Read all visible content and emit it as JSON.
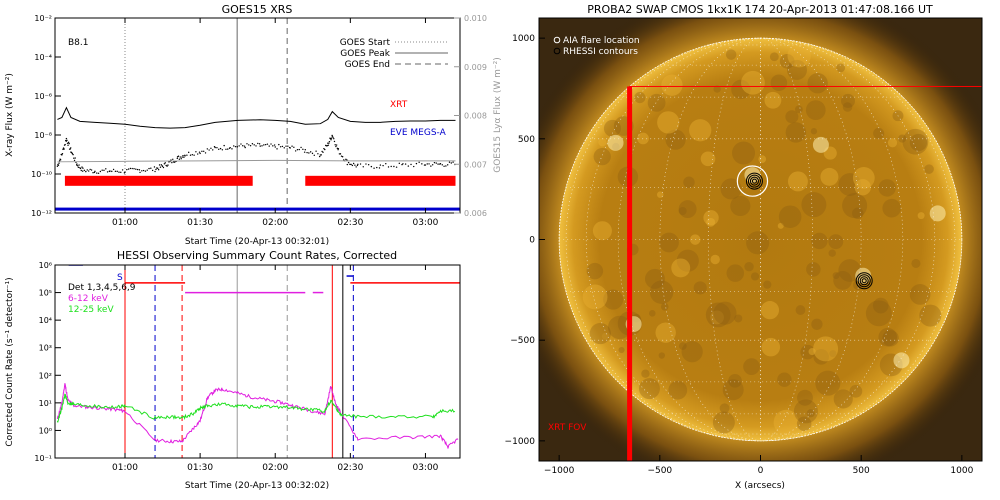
{
  "chart_data": [
    {
      "type": "line",
      "title": "GOES15 XRS",
      "xlabel": "Start Time (20-Apr-13 00:32:01)",
      "ylabel": "X-ray Flux (W m⁻²)",
      "ylabel_right": "GOES15 Lyα Flux (W m⁻²)",
      "x_tick_labels": [
        "01:00",
        "01:30",
        "02:00",
        "02:30",
        "03:00"
      ],
      "x_ticks_hours": [
        1.0,
        1.5,
        2.0,
        2.5,
        3.0
      ],
      "xlim_hours": [
        0.534,
        3.23
      ],
      "ylim_log": [
        -12,
        -2
      ],
      "y_tick_labels": [
        "10⁻¹²",
        "10⁻¹⁰",
        "10⁻⁸",
        "10⁻⁶",
        "10⁻⁴",
        "10⁻²"
      ],
      "ylim_right": [
        0.006,
        0.01
      ],
      "y_right_tick_labels": [
        "0.006",
        "0.007",
        "0.008",
        "0.009",
        "0.010"
      ],
      "class_label": "B8.1",
      "legend": [
        {
          "label": "GOES Start",
          "style": "dotted",
          "color": "#888888"
        },
        {
          "label": "GOES Peak",
          "style": "solid",
          "color": "#999999"
        },
        {
          "label": "GOES End",
          "style": "dashed",
          "color": "#999999"
        }
      ],
      "markers_hours": {
        "start": 1.0,
        "peak": 1.747,
        "end": 2.08
      },
      "series": [
        {
          "name": "XRT",
          "color": "#ff0000",
          "kind": "label"
        },
        {
          "name": "EVE MEGS-A",
          "color": "#0000cc",
          "kind": "label"
        },
        {
          "name": "long",
          "color": "#000000",
          "kind": "solid",
          "points": [
            [
              0.55,
              -7.2
            ],
            [
              0.58,
              -7.1
            ],
            [
              0.61,
              -6.6
            ],
            [
              0.64,
              -7.1
            ],
            [
              0.7,
              -7.3
            ],
            [
              0.8,
              -7.35
            ],
            [
              0.9,
              -7.4
            ],
            [
              1.0,
              -7.45
            ],
            [
              1.1,
              -7.55
            ],
            [
              1.2,
              -7.62
            ],
            [
              1.3,
              -7.65
            ],
            [
              1.4,
              -7.62
            ],
            [
              1.5,
              -7.5
            ],
            [
              1.6,
              -7.35
            ],
            [
              1.75,
              -7.25
            ],
            [
              1.9,
              -7.22
            ],
            [
              2.0,
              -7.25
            ],
            [
              2.1,
              -7.3
            ],
            [
              2.2,
              -7.45
            ],
            [
              2.3,
              -7.42
            ],
            [
              2.35,
              -7.2
            ],
            [
              2.38,
              -6.8
            ],
            [
              2.42,
              -7.1
            ],
            [
              2.5,
              -7.3
            ],
            [
              2.6,
              -7.35
            ],
            [
              2.7,
              -7.35
            ],
            [
              2.8,
              -7.3
            ],
            [
              2.9,
              -7.28
            ],
            [
              3.0,
              -7.28
            ],
            [
              3.1,
              -7.25
            ],
            [
              3.2,
              -7.25
            ]
          ]
        },
        {
          "name": "short",
          "color": "#000000",
          "kind": "dotted",
          "points": [
            [
              0.55,
              -9.6
            ],
            [
              0.58,
              -9.0
            ],
            [
              0.61,
              -8.2
            ],
            [
              0.64,
              -8.8
            ],
            [
              0.68,
              -9.5
            ],
            [
              0.72,
              -9.8
            ],
            [
              0.8,
              -9.85
            ],
            [
              0.9,
              -9.85
            ],
            [
              1.0,
              -9.85
            ],
            [
              1.1,
              -9.8
            ],
            [
              1.2,
              -9.75
            ],
            [
              1.25,
              -9.6
            ],
            [
              1.3,
              -9.4
            ],
            [
              1.35,
              -9.2
            ],
            [
              1.4,
              -9.0
            ],
            [
              1.5,
              -8.85
            ],
            [
              1.6,
              -8.7
            ],
            [
              1.7,
              -8.6
            ],
            [
              1.8,
              -8.55
            ],
            [
              1.9,
              -8.55
            ],
            [
              2.0,
              -8.6
            ],
            [
              2.1,
              -8.65
            ],
            [
              2.2,
              -8.8
            ],
            [
              2.3,
              -9.0
            ],
            [
              2.35,
              -8.5
            ],
            [
              2.38,
              -8.0
            ],
            [
              2.42,
              -8.8
            ],
            [
              2.48,
              -9.4
            ],
            [
              2.55,
              -9.6
            ],
            [
              2.7,
              -9.6
            ],
            [
              2.85,
              -9.55
            ],
            [
              3.0,
              -9.5
            ],
            [
              3.1,
              -9.5
            ],
            [
              3.2,
              -9.5
            ]
          ]
        },
        {
          "name": "lyman",
          "color": "#999999",
          "kind": "solid-right",
          "points": [
            [
              0.55,
              0.00705
            ],
            [
              1.0,
              0.00706
            ],
            [
              1.5,
              0.00707
            ],
            [
              2.0,
              0.00708
            ],
            [
              2.5,
              0.00707
            ],
            [
              3.0,
              0.00707
            ],
            [
              3.2,
              0.00707
            ]
          ]
        }
      ],
      "coverage_bars": [
        {
          "color": "#ff0000",
          "y_log": -10.35,
          "ranges_hours": [
            [
              0.6,
              1.85
            ],
            [
              2.2,
              3.2
            ]
          ]
        },
        {
          "color": "#0000cc",
          "y_log": -11.8,
          "ranges_hours": [
            [
              0.534,
              3.23
            ]
          ]
        }
      ]
    },
    {
      "type": "line",
      "title": "HESSI Observing Summary Count Rates, Corrected",
      "xlabel": "Start Time (20-Apr-13 00:32:02)",
      "ylabel": "Corrected Count Rate (s⁻¹ detector⁻¹)",
      "x_tick_labels": [
        "01:00",
        "01:30",
        "02:00",
        "02:30",
        "03:00"
      ],
      "x_ticks_hours": [
        1.0,
        1.5,
        2.0,
        2.5,
        3.0
      ],
      "xlim_hours": [
        0.534,
        3.23
      ],
      "ylim_log": [
        -1,
        6
      ],
      "y_tick_labels": [
        "10⁻¹",
        "10⁰",
        "10¹",
        "10²",
        "10³",
        "10⁴",
        "10⁵",
        "10⁶"
      ],
      "legend_texts": [
        {
          "label": "Det 1,3,4,5,6,9",
          "color": "#000000"
        },
        {
          "label": "6-12 keV",
          "color": "#e020e0"
        },
        {
          "label": "12-25 keV",
          "color": "#20e020"
        }
      ],
      "flag_label": "S",
      "series": [
        {
          "name": "6-12 keV",
          "color": "#e020e0",
          "points": [
            [
              0.55,
              0.4
            ],
            [
              0.58,
              1.0
            ],
            [
              0.6,
              1.7
            ],
            [
              0.62,
              1.1
            ],
            [
              0.66,
              0.9
            ],
            [
              0.75,
              0.85
            ],
            [
              0.85,
              0.8
            ],
            [
              0.95,
              0.75
            ],
            [
              1.0,
              0.7
            ],
            [
              1.2,
              -0.35
            ],
            [
              1.3,
              -0.4
            ],
            [
              1.38,
              -0.4
            ],
            [
              1.45,
              0.05
            ],
            [
              1.5,
              0.35
            ],
            [
              1.55,
              1.2
            ],
            [
              1.6,
              1.45
            ],
            [
              1.65,
              1.5
            ],
            [
              1.75,
              1.35
            ],
            [
              1.85,
              1.2
            ],
            [
              1.95,
              1.1
            ],
            [
              2.05,
              1.0
            ],
            [
              2.15,
              0.85
            ],
            [
              2.25,
              0.7
            ],
            [
              2.33,
              0.6
            ],
            [
              2.37,
              1.6
            ],
            [
              2.4,
              1.0
            ],
            [
              2.44,
              0.6
            ],
            [
              2.55,
              -0.3
            ],
            [
              2.9,
              -0.25
            ],
            [
              3.1,
              -0.2
            ],
            [
              3.15,
              -0.6
            ],
            [
              3.22,
              -0.3
            ]
          ]
        },
        {
          "name": "12-25 keV",
          "color": "#20e020",
          "points": [
            [
              0.55,
              0.3
            ],
            [
              0.58,
              0.8
            ],
            [
              0.6,
              1.3
            ],
            [
              0.62,
              1.0
            ],
            [
              0.66,
              0.95
            ],
            [
              0.75,
              0.9
            ],
            [
              0.85,
              0.85
            ],
            [
              0.95,
              0.85
            ],
            [
              1.0,
              0.9
            ],
            [
              1.2,
              0.45
            ],
            [
              1.3,
              0.5
            ],
            [
              1.38,
              0.45
            ],
            [
              1.45,
              0.6
            ],
            [
              1.5,
              0.8
            ],
            [
              1.55,
              0.9
            ],
            [
              1.65,
              0.95
            ],
            [
              1.75,
              0.9
            ],
            [
              1.85,
              0.85
            ],
            [
              1.95,
              0.85
            ],
            [
              2.05,
              0.85
            ],
            [
              2.15,
              0.8
            ],
            [
              2.25,
              0.75
            ],
            [
              2.33,
              0.7
            ],
            [
              2.37,
              1.1
            ],
            [
              2.4,
              0.85
            ],
            [
              2.44,
              0.55
            ],
            [
              2.55,
              0.5
            ],
            [
              2.8,
              0.5
            ],
            [
              3.05,
              0.5
            ],
            [
              3.1,
              0.7
            ],
            [
              3.2,
              0.7
            ]
          ]
        }
      ],
      "attenuator_levels": [
        {
          "color": "#ff0000",
          "y_log": 5.35,
          "ranges_hours": [
            [
              1.0,
              1.4
            ]
          ]
        },
        {
          "color": "#e020e0",
          "y_log": 5.0,
          "ranges_hours": [
            [
              1.4,
              2.2
            ],
            [
              2.25,
              2.32
            ]
          ]
        },
        {
          "color": "#ff0000",
          "y_log": 5.35,
          "ranges_hours": [
            [
              2.5,
              3.23
            ]
          ]
        },
        {
          "color": "#0000cc",
          "y_log": 6.0,
          "ranges_hours": [
            [
              0.625,
              0.72
            ]
          ]
        },
        {
          "color": "#0000cc",
          "y_log": 5.6,
          "ranges_hours": [
            [
              2.475,
              2.52
            ]
          ]
        }
      ],
      "vertical_lines_hours": [
        {
          "x": 1.0,
          "color": "#ff0000",
          "style": "solid"
        },
        {
          "x": 1.2,
          "color": "#0000cc",
          "style": "dashed"
        },
        {
          "x": 1.38,
          "color": "#ff0000",
          "style": "dashed"
        },
        {
          "x": 1.747,
          "color": "#999999",
          "style": "solid"
        },
        {
          "x": 2.08,
          "color": "#999999",
          "style": "dashed"
        },
        {
          "x": 2.38,
          "color": "#ff0000",
          "style": "solid"
        },
        {
          "x": 2.45,
          "color": "#000000",
          "style": "solid"
        },
        {
          "x": 2.52,
          "color": "#0000cc",
          "style": "dashed"
        }
      ]
    },
    {
      "type": "image",
      "title": "PROBA2 SWAP CMOS 1kx1K 174 20-Apr-2013 01:47:08.166 UT",
      "xlabel": "X (arcsecs)",
      "ylabel": "",
      "xlim": [
        -1100,
        1100
      ],
      "ylim": [
        -1100,
        1100
      ],
      "x_tick_labels": [
        "−1000",
        "−500",
        "0",
        "500",
        "1000"
      ],
      "x_ticks": [
        -1000,
        -500,
        0,
        500,
        1000
      ],
      "y_tick_labels": [
        "−1000",
        "−500",
        "0",
        "500",
        "1000"
      ],
      "y_ticks": [
        -1000,
        -500,
        0,
        500,
        1000
      ],
      "solar_radius": 1000,
      "legend": [
        {
          "label": "AIA flare location",
          "color": "#ffffff",
          "symbol": "circle"
        },
        {
          "label": "RHESSI contours",
          "color": "#000000",
          "symbol": "circle"
        }
      ],
      "fov_label": "XRT FOV",
      "fov_box": {
        "x0": -650,
        "y0": -1100,
        "x1": 1100,
        "y1": 760,
        "color": "#ff0000"
      },
      "flare_circle": {
        "x": -40,
        "y": 290,
        "r": 75
      },
      "contour_sources": [
        {
          "x": -30,
          "y": 290
        },
        {
          "x": 515,
          "y": -205
        }
      ]
    }
  ]
}
